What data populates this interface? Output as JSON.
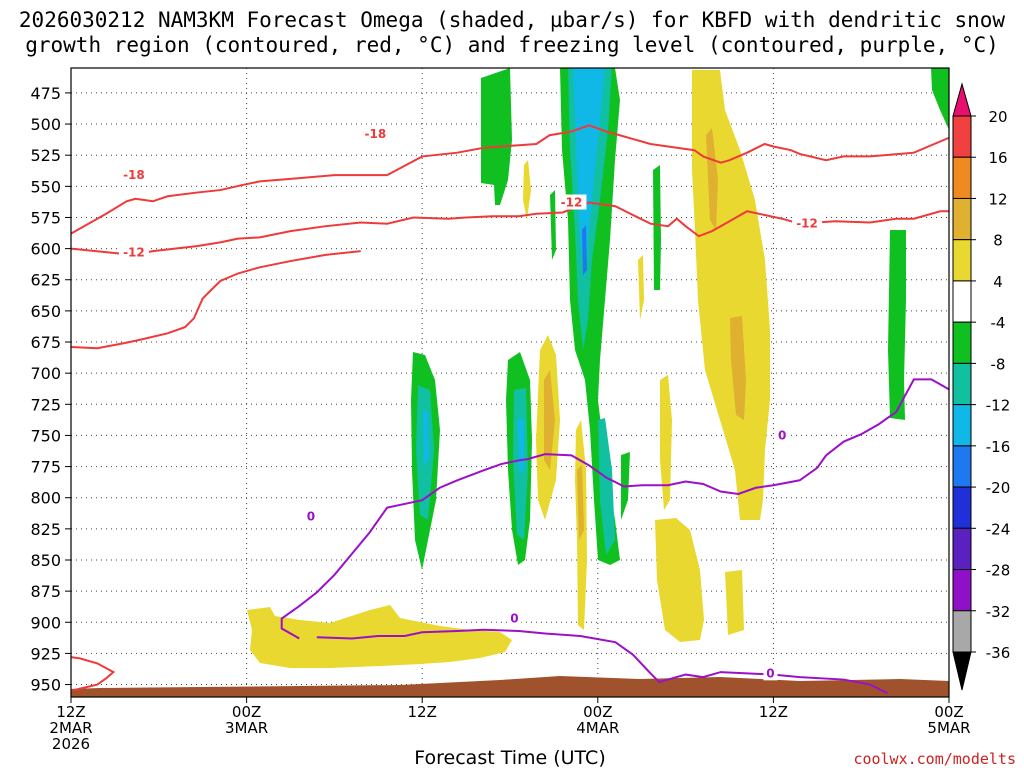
{
  "chart_data": {
    "type": "time-height cross-section",
    "title_line1": "2026030212 NAM3KM Forecast Omega (shaded, µbar/s) for KBFD with dendritic snow",
    "title_line2": "growth region (contoured, red, °C) and freezing level (contoured, purple, °C)",
    "xlabel": "Forecast Time (UTC)",
    "credit": "coolwx.com/modelts",
    "x_range_hours": [
      0,
      60
    ],
    "y_range_mb": [
      455,
      960
    ],
    "y_ticks": [
      475,
      500,
      525,
      550,
      575,
      600,
      625,
      650,
      675,
      700,
      725,
      750,
      775,
      800,
      825,
      850,
      875,
      900,
      925,
      950
    ],
    "x_ticks": [
      {
        "hour": 0,
        "lines": [
          "12Z",
          "2MAR",
          "2026"
        ]
      },
      {
        "hour": 12,
        "lines": [
          "00Z",
          "3MAR"
        ]
      },
      {
        "hour": 24,
        "lines": [
          "12Z"
        ]
      },
      {
        "hour": 36,
        "lines": [
          "00Z",
          "4MAR"
        ]
      },
      {
        "hour": 48,
        "lines": [
          "12Z"
        ]
      },
      {
        "hour": 60,
        "lines": [
          "00Z",
          "5MAR"
        ]
      }
    ],
    "colorbar": {
      "labels": [
        "20",
        "16",
        "12",
        "8",
        "4",
        "-4",
        "-8",
        "-12",
        "-16",
        "-20",
        "-24",
        "-28",
        "-32",
        "-36"
      ],
      "colors": [
        "#e8106e",
        "#f04040",
        "#f08a20",
        "#e0b030",
        "#e8d830",
        "#ffffff",
        "#10c020",
        "#10c0a0",
        "#10b8e8",
        "#1e78f0",
        "#2030d8",
        "#5a20c0",
        "#9010c8",
        "#a8a8a8",
        "#000000"
      ]
    },
    "contour_labels": [
      {
        "text": "-18",
        "hour": 20.8,
        "mb": 508
      },
      {
        "text": "-18",
        "hour": 4.3,
        "mb": 541
      },
      {
        "text": "-12",
        "hour": 34.2,
        "mb": 563
      },
      {
        "text": "-12",
        "hour": 50.3,
        "mb": 580
      },
      {
        "text": "-12",
        "hour": 4.3,
        "mb": 603
      },
      {
        "text": "0",
        "hour": 48.6,
        "mb": 750
      },
      {
        "text": "0",
        "hour": 16.4,
        "mb": 815
      },
      {
        "text": "0",
        "hour": 30.3,
        "mb": 897
      },
      {
        "text": "0",
        "hour": 47.8,
        "mb": 941
      }
    ],
    "isotherm_minus18": [
      [
        0,
        588
      ],
      [
        2.4,
        572
      ],
      [
        3.8,
        562
      ],
      [
        4.4,
        560
      ],
      [
        5.6,
        562
      ],
      [
        6.6,
        558
      ],
      [
        8.6,
        555
      ],
      [
        10.2,
        553
      ],
      [
        11.7,
        549
      ],
      [
        12.9,
        546
      ],
      [
        15.0,
        544
      ],
      [
        18.0,
        541
      ],
      [
        21.6,
        541
      ],
      [
        24.0,
        526
      ],
      [
        26.4,
        523
      ],
      [
        28.2,
        519
      ],
      [
        30.6,
        517
      ],
      [
        31.8,
        516
      ],
      [
        32.7,
        509
      ],
      [
        34.2,
        506
      ],
      [
        35.4,
        501
      ],
      [
        36.6,
        506
      ],
      [
        37.8,
        510
      ],
      [
        39.6,
        516
      ],
      [
        41.4,
        519
      ],
      [
        42.6,
        521
      ],
      [
        43.2,
        526
      ],
      [
        44.4,
        531
      ],
      [
        45.0,
        529
      ],
      [
        45.6,
        526
      ],
      [
        46.2,
        523
      ],
      [
        47.4,
        516
      ],
      [
        48.0,
        518
      ],
      [
        49.2,
        521
      ],
      [
        49.8,
        524
      ],
      [
        51.6,
        529
      ],
      [
        52.8,
        526
      ],
      [
        54.6,
        526
      ],
      [
        57.6,
        523
      ],
      [
        60,
        511
      ]
    ],
    "isotherm_minus12": [
      [
        0,
        600
      ],
      [
        4.2,
        605
      ],
      [
        5.6,
        602
      ],
      [
        8.6,
        598
      ],
      [
        10.2,
        595
      ],
      [
        11.4,
        592
      ],
      [
        12.9,
        591
      ],
      [
        15.0,
        586
      ],
      [
        17.4,
        582
      ],
      [
        19.8,
        579
      ],
      [
        21.6,
        580
      ],
      [
        23.4,
        575
      ],
      [
        25.8,
        576
      ],
      [
        27.0,
        575
      ],
      [
        28.8,
        574
      ],
      [
        30.6,
        574
      ],
      [
        31.8,
        572
      ],
      [
        33.6,
        571
      ],
      [
        35.4,
        563
      ],
      [
        37.2,
        566
      ],
      [
        38.4,
        573
      ],
      [
        39.6,
        580
      ],
      [
        40.8,
        582
      ],
      [
        41.4,
        576
      ],
      [
        42.0,
        582
      ],
      [
        42.9,
        590
      ],
      [
        43.8,
        586
      ],
      [
        45.0,
        578
      ],
      [
        46.2,
        570
      ],
      [
        47.4,
        573
      ],
      [
        48.6,
        576
      ],
      [
        49.8,
        580
      ],
      [
        52.2,
        578
      ],
      [
        54.6,
        579
      ],
      [
        56.4,
        576
      ],
      [
        57.6,
        576
      ],
      [
        59.4,
        570
      ],
      [
        60,
        570
      ]
    ],
    "isotherm_minus12_left": [
      [
        0,
        679
      ],
      [
        1.8,
        680
      ],
      [
        3.6,
        676
      ],
      [
        4.8,
        673
      ],
      [
        6.6,
        668
      ],
      [
        7.8,
        663
      ],
      [
        8.4,
        656
      ],
      [
        9.0,
        640
      ],
      [
        10.2,
        626
      ],
      [
        11.4,
        620
      ],
      [
        12.9,
        615
      ],
      [
        15.0,
        610
      ],
      [
        17.4,
        605
      ],
      [
        19.8,
        602
      ]
    ],
    "freezing_level": [
      [
        0,
        955
      ],
      [
        1.8,
        950
      ],
      [
        2.4,
        945
      ],
      [
        2.9,
        940
      ],
      [
        1.8,
        933
      ],
      [
        0.6,
        929
      ],
      [
        0,
        928
      ]
    ],
    "freezing_level_main": [
      [
        15.6,
        913
      ],
      [
        14.4,
        905
      ],
      [
        14.4,
        897
      ],
      [
        15.6,
        887
      ],
      [
        16.8,
        876
      ],
      [
        18.0,
        862
      ],
      [
        19.2,
        845
      ],
      [
        20.4,
        828
      ],
      [
        21.6,
        808
      ],
      [
        22.8,
        805
      ],
      [
        24.0,
        802
      ],
      [
        25.2,
        792
      ],
      [
        26.4,
        786
      ],
      [
        28.2,
        778
      ],
      [
        29.4,
        773
      ],
      [
        30.6,
        770
      ],
      [
        31.2,
        769
      ],
      [
        32.4,
        765
      ],
      [
        34.2,
        766
      ],
      [
        35.4,
        774
      ],
      [
        36.6,
        784
      ],
      [
        37.8,
        791
      ],
      [
        39.0,
        790
      ],
      [
        40.8,
        790
      ],
      [
        42.0,
        787
      ],
      [
        43.2,
        789
      ],
      [
        44.4,
        795
      ],
      [
        45.6,
        797
      ],
      [
        46.8,
        792
      ],
      [
        48.0,
        790
      ],
      [
        49.8,
        786
      ],
      [
        51.0,
        776
      ],
      [
        51.6,
        766
      ],
      [
        52.8,
        755
      ],
      [
        54.0,
        749
      ],
      [
        55.2,
        741
      ],
      [
        56.4,
        731
      ],
      [
        57.0,
        718
      ],
      [
        57.6,
        705
      ],
      [
        58.8,
        705
      ],
      [
        60,
        713
      ]
    ],
    "freezing_level_lower": [
      [
        16.8,
        912
      ],
      [
        19.2,
        913
      ],
      [
        21.0,
        911
      ],
      [
        22.8,
        911
      ],
      [
        24.0,
        908
      ],
      [
        26.4,
        907
      ],
      [
        28.2,
        906
      ],
      [
        30.6,
        907
      ],
      [
        32.4,
        909
      ],
      [
        34.8,
        911
      ],
      [
        37.2,
        916
      ],
      [
        38.4,
        926
      ],
      [
        39.6,
        941
      ],
      [
        40.2,
        948
      ],
      [
        42.0,
        942
      ],
      [
        43.2,
        944
      ],
      [
        44.4,
        940
      ],
      [
        46.2,
        941
      ],
      [
        48.0,
        942
      ],
      [
        49.8,
        944
      ],
      [
        52.8,
        946
      ],
      [
        54.6,
        950
      ],
      [
        55.8,
        957
      ]
    ]
  }
}
